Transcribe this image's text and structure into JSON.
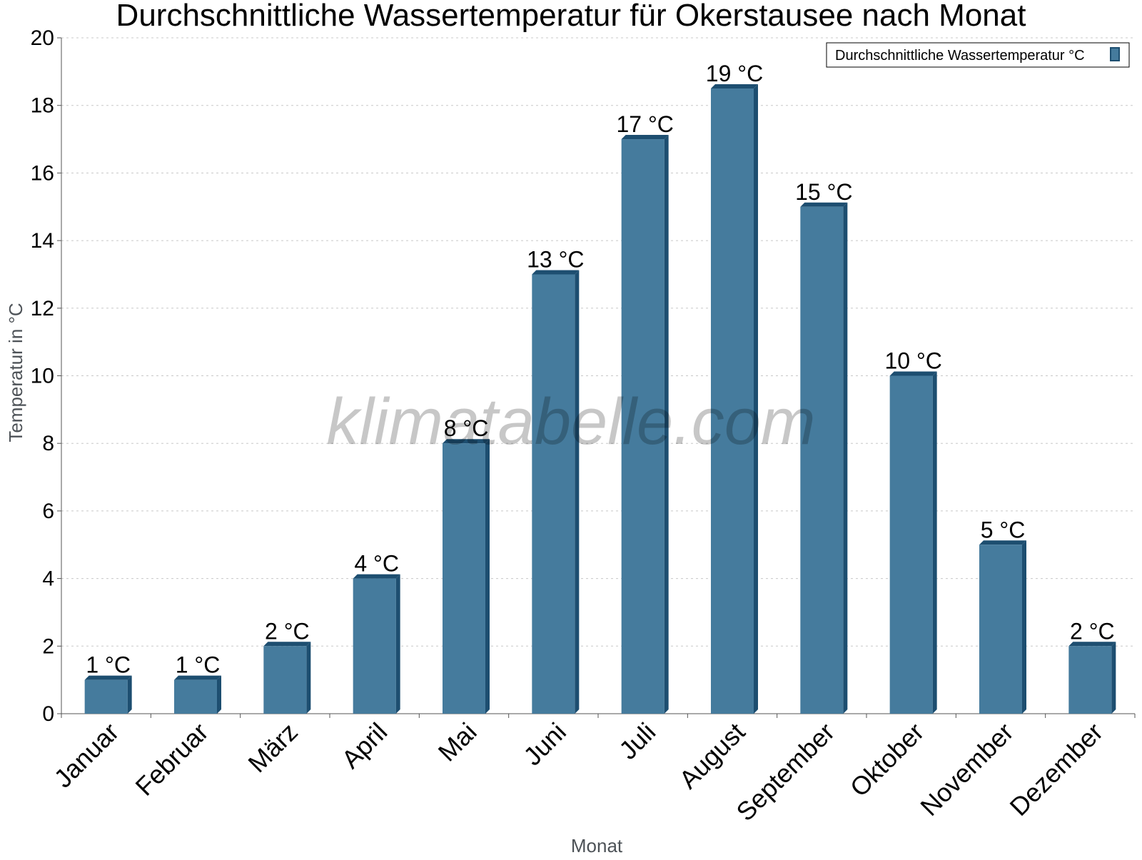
{
  "chart_data": {
    "type": "bar",
    "title": "Durchschnittliche Wassertemperatur für Okerstausee nach Monat",
    "xlabel": "Monat",
    "ylabel": "Temperatur in °C",
    "categories": [
      "Januar",
      "Februar",
      "März",
      "April",
      "Mai",
      "Juni",
      "Juli",
      "August",
      "September",
      "Oktober",
      "November",
      "Dezember"
    ],
    "series": [
      {
        "name": "Durchschnittliche Wassertemperatur °C",
        "values": [
          1,
          1,
          2,
          4,
          8,
          13,
          17,
          18.5,
          15,
          10,
          5,
          2
        ],
        "labels": [
          "1 °C",
          "1 °C",
          "2 °C",
          "4 °C",
          "8 °C",
          "13 °C",
          "17 °C",
          "19 °C",
          "15 °C",
          "10 °C",
          "5 °C",
          "2 °C"
        ]
      }
    ],
    "ylim": [
      0,
      20
    ],
    "yticks": [
      0,
      2,
      4,
      6,
      8,
      10,
      12,
      14,
      16,
      18,
      20
    ],
    "grid": true,
    "legend_position": "top-right",
    "colors": {
      "bar": "#457b9d",
      "bar_dark": "#1d4e70",
      "grid": "#c8c8c8",
      "axis": "#555555"
    },
    "watermark": "klimatabelle.com"
  }
}
